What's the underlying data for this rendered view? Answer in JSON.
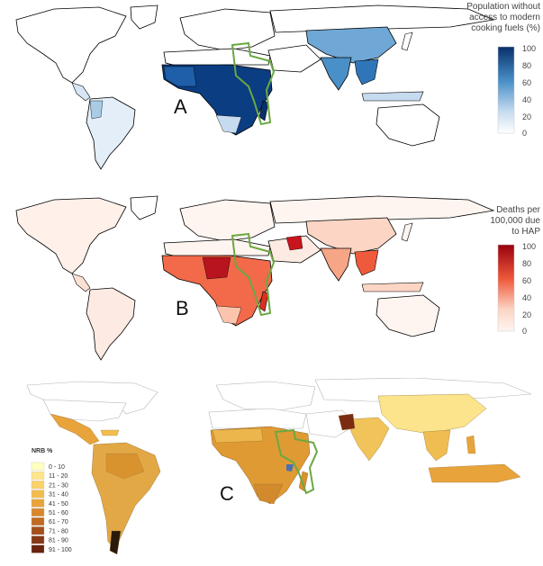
{
  "panels": [
    {
      "id": "A",
      "label": "A",
      "legend_title_lines": [
        "Population without",
        "access to modern",
        "cooking fuels (%)"
      ],
      "ticks": [
        "100",
        "80",
        "60",
        "40",
        "20",
        "0"
      ],
      "colors": {
        "high": "#08306b",
        "mid": "#4a90c8",
        "low": "#c6dbef",
        "none": "#ffffff"
      }
    },
    {
      "id": "B",
      "label": "B",
      "legend_title_lines": [
        "Deaths per",
        "100,000 due",
        "to HAP"
      ],
      "ticks": [
        "100",
        "80",
        "60",
        "40",
        "20",
        "0"
      ],
      "colors": {
        "high": "#99000d",
        "mid": "#ef5a3c",
        "low": "#fcd5c4",
        "none": "#fff5f0"
      }
    },
    {
      "id": "C",
      "label": "C",
      "legend_title": "NRB %",
      "classes": [
        "0 - 10",
        "11 - 20",
        "21 - 30",
        "31 - 40",
        "41 - 50",
        "51 - 60",
        "61 - 70",
        "71 - 80",
        "81 - 90",
        "91 - 100"
      ],
      "class_colors": [
        "#ffffbf",
        "#fde68a",
        "#f9d26b",
        "#f2bd4f",
        "#e8a33a",
        "#d8872a",
        "#c26a22",
        "#a4501c",
        "#853916",
        "#6a230f"
      ]
    }
  ],
  "highlight_color": "#6aa842"
}
